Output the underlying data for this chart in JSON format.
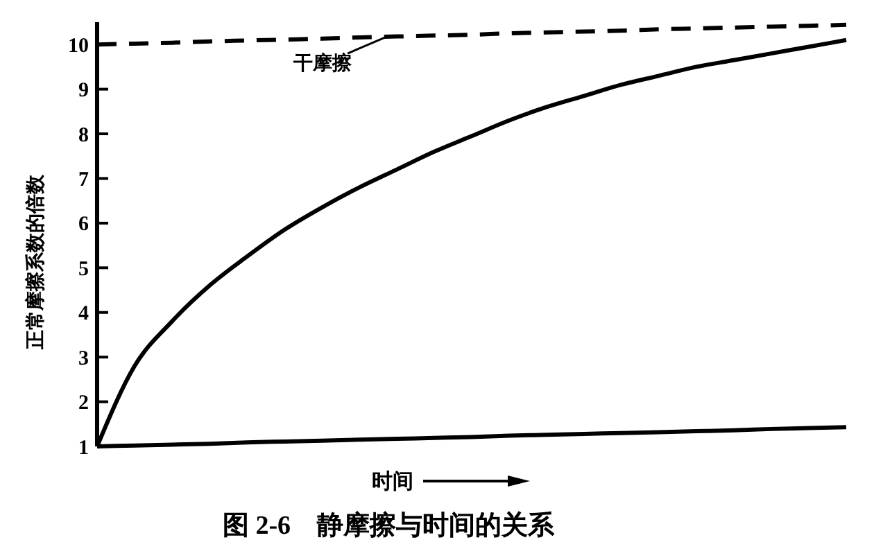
{
  "chart_data": {
    "type": "line",
    "title": "图 2-6　静摩擦与时间的关系",
    "xlabel": "时间",
    "ylabel": "正常摩擦系数的倍数",
    "annotations": [
      "干摩擦"
    ],
    "categories": [
      null,
      null,
      null,
      null,
      null,
      null,
      null,
      null,
      null,
      null,
      null,
      null,
      null,
      null,
      null,
      null,
      null,
      null,
      null,
      null,
      null
    ],
    "ylim": [
      1,
      10.5
    ],
    "yticks": [
      1,
      2,
      3,
      4,
      5,
      6,
      7,
      8,
      9,
      10
    ],
    "series": [
      {
        "color": "#000000",
        "line_style": "dashed",
        "values": [
          10,
          10.02,
          10.04,
          10.07,
          10.09,
          10.11,
          10.13,
          10.16,
          10.18,
          10.2,
          10.22,
          10.25,
          10.27,
          10.29,
          10.31,
          10.34,
          10.36,
          10.38,
          10.4,
          10.42,
          10.44
        ]
      },
      {
        "color": "#000000",
        "line_style": "solid",
        "values": [
          1,
          2.8,
          3.8,
          4.6,
          5.25,
          5.85,
          6.35,
          6.8,
          7.2,
          7.6,
          7.95,
          8.3,
          8.6,
          8.85,
          9.1,
          9.3,
          9.5,
          9.65,
          9.8,
          9.95,
          10.1
        ]
      },
      {
        "color": "#000000",
        "line_style": "solid",
        "values": [
          1,
          1.02,
          1.04,
          1.06,
          1.09,
          1.11,
          1.13,
          1.15,
          1.17,
          1.19,
          1.21,
          1.24,
          1.26,
          1.28,
          1.3,
          1.32,
          1.34,
          1.36,
          1.39,
          1.41,
          1.43
        ]
      }
    ]
  }
}
